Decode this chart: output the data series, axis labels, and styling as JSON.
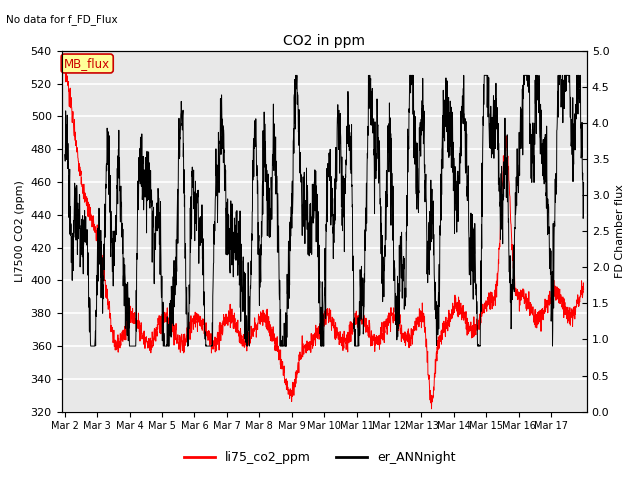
{
  "title": "CO2 in ppm",
  "subtitle": "No data for f_FD_Flux",
  "ylabel_left": "LI7500 CO2 (ppm)",
  "ylabel_right": "FD Chamber flux",
  "ylim_left": [
    320,
    540
  ],
  "ylim_right": [
    0.0,
    5.0
  ],
  "yticks_left": [
    320,
    340,
    360,
    380,
    400,
    420,
    440,
    460,
    480,
    500,
    520,
    540
  ],
  "yticks_right": [
    0.0,
    0.5,
    1.0,
    1.5,
    2.0,
    2.5,
    3.0,
    3.5,
    4.0,
    4.5,
    5.0
  ],
  "xlabel_ticks": [
    "Mar 2",
    "Mar 3",
    "Mar 4",
    "Mar 5",
    "Mar 6",
    "Mar 7",
    "Mar 8",
    "Mar 9",
    "Mar 10",
    "Mar 11",
    "Mar 12",
    "Mar 13",
    "Mar 14",
    "Mar 15",
    "Mar 16",
    "Mar 17"
  ],
  "legend_labels": [
    "li75_co2_ppm",
    "er_ANNnight"
  ],
  "legend_colors": [
    "red",
    "black"
  ],
  "line1_color": "red",
  "line2_color": "black",
  "background_color": "#e8e8e8",
  "grid_color": "white",
  "mb_flux_box_color": "#ffff99",
  "mb_flux_text_color": "#cc0000",
  "mb_flux_border_color": "#cc0000"
}
